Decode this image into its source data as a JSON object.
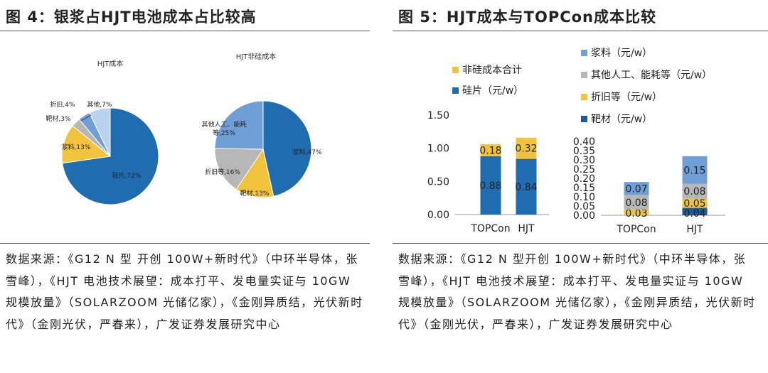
{
  "left": {
    "title": "图 4：银浆占HJT电池成本占比较高",
    "source": "数据来源：《G12 N 型 开创 100W+新时代》（中环半导体，张雪峰），《HJT 电池技术展望：成本打平、发电量实证与 10GW 规模放量》（SOLARZOOM 光储亿家），《金刚异质结，光伏新时代》（金刚光伏，严春来），广发证券发展研究中心"
  },
  "right": {
    "title": "图 5：HJT成本与TOPCon成本比较",
    "source": "数据来源：《G12 N 型开创 100W+新时代》（中环半导体，张雪峰），《HJT 电池技术展望：成本打平、发电量实证与 10GW 规模放量》（SOLARZOOM 光储亿家），《金刚异质结，光伏新时代》（金刚光伏，严春来），广发证券发展研究中心"
  },
  "colors": {
    "blue": "#1f6db0",
    "gold": "#f2c33d",
    "gray": "#b7b7b7",
    "lightblue": "#6f9fd6",
    "paleblue": "#b9d3ee",
    "midblue": "#3f7fc2",
    "darkblue": "#1a5c99"
  },
  "chart_data": [
    {
      "type": "pie",
      "title": "HJT成本",
      "slices": [
        {
          "label": "硅片,72%",
          "value": 72,
          "color": "#1f6db0"
        },
        {
          "label": "浆料,13%",
          "value": 13,
          "color": "#f2c33d"
        },
        {
          "label": "靶材,3%",
          "value": 3,
          "color": "#b7b7b7"
        },
        {
          "label": "折旧,4%",
          "value": 4,
          "color": "#6f9fd6"
        },
        {
          "label": "其他,7%",
          "value": 7,
          "color": "#b9d3ee"
        }
      ]
    },
    {
      "type": "pie",
      "title": "HJT非硅成本",
      "slices": [
        {
          "label": "浆料,47%",
          "value": 47,
          "color": "#1f6db0"
        },
        {
          "label": "靶材,13%",
          "value": 13,
          "color": "#f2c33d"
        },
        {
          "label": "折旧等,16%",
          "value": 16,
          "color": "#b7b7b7"
        },
        {
          "label": "其他人工、能耗等,25%",
          "label_lines": [
            "其他人工、能耗",
            "等,25%"
          ],
          "value": 25,
          "color": "#6f9fd6"
        }
      ]
    },
    {
      "type": "bar",
      "stacked": true,
      "categories": [
        "TOPCon",
        "HJT"
      ],
      "series": [
        {
          "name": "硅片（元/w）",
          "values": [
            0.88,
            0.84
          ],
          "color": "#1f6db0",
          "labels": [
            "0.88",
            "0.84"
          ]
        },
        {
          "name": "非硅成本合计",
          "values": [
            0.18,
            0.32
          ],
          "color": "#f2c33d",
          "labels": [
            "0.18",
            "0.32"
          ]
        }
      ],
      "ylim": [
        0,
        1.5
      ],
      "yticks": [
        "0.00",
        "0.50",
        "1.00",
        "1.50"
      ],
      "legend": "top"
    },
    {
      "type": "bar",
      "stacked": true,
      "categories": [
        "TOPCon",
        "HJT"
      ],
      "series": [
        {
          "name": "靶材（元/w）",
          "values": [
            0,
            0.04
          ],
          "color": "#1a5c99",
          "labels": [
            "",
            "0.04"
          ]
        },
        {
          "name": "折旧等（元/w）",
          "values": [
            0.03,
            0.05
          ],
          "color": "#f2c33d",
          "labels": [
            "0.03",
            "0.05"
          ]
        },
        {
          "name": "其他人工、能耗等（元/w）",
          "values": [
            0.08,
            0.08
          ],
          "color": "#b7b7b7",
          "labels": [
            "0.08",
            "0.08"
          ]
        },
        {
          "name": "浆料（元/w）",
          "values": [
            0.07,
            0.15
          ],
          "color": "#6f9fd6",
          "labels": [
            "0.07",
            "0.15"
          ]
        }
      ],
      "ylim": [
        0,
        0.4
      ],
      "yticks": [
        "0.00",
        "0.05",
        "0.10",
        "0.15",
        "0.20",
        "0.25",
        "0.30",
        "0.35",
        "0.40"
      ],
      "legend": "top"
    }
  ]
}
